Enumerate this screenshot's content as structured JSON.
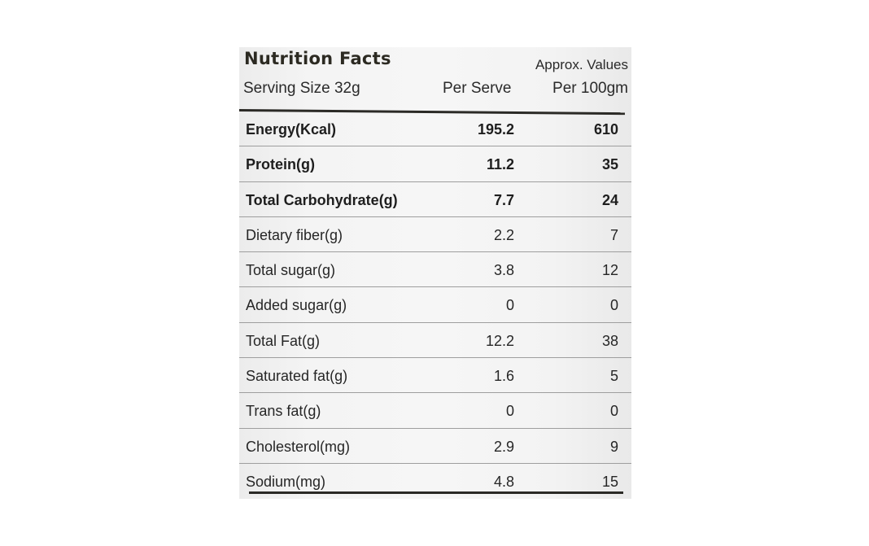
{
  "label": {
    "title": "Nutrition Facts",
    "approx": "Approx. Values",
    "serving_size": "Serving Size 32g",
    "col_per_serve": "Per Serve",
    "col_per_100": "Per 100gm"
  },
  "rows": [
    {
      "name": "Energy(Kcal)",
      "per_serve": "195.2",
      "per_100": "610",
      "bold": true
    },
    {
      "name": "Protein(g)",
      "per_serve": "11.2",
      "per_100": "35",
      "bold": true
    },
    {
      "name": "Total Carbohydrate(g)",
      "per_serve": "7.7",
      "per_100": "24",
      "bold": true
    },
    {
      "name": "Dietary fiber(g)",
      "per_serve": "2.2",
      "per_100": "7",
      "bold": false
    },
    {
      "name": "Total sugar(g)",
      "per_serve": "3.8",
      "per_100": "12",
      "bold": false
    },
    {
      "name": "Added sugar(g)",
      "per_serve": "0",
      "per_100": "0",
      "bold": false
    },
    {
      "name": "Total Fat(g)",
      "per_serve": "12.2",
      "per_100": "38",
      "bold": false
    },
    {
      "name": "Saturated fat(g)",
      "per_serve": "1.6",
      "per_100": "5",
      "bold": false
    },
    {
      "name": "Trans fat(g)",
      "per_serve": "0",
      "per_100": "0",
      "bold": false
    },
    {
      "name": "Cholesterol(mg)",
      "per_serve": "2.9",
      "per_100": "9",
      "bold": false
    },
    {
      "name": "Sodium(mg)",
      "per_serve": "4.8",
      "per_100": "15",
      "bold": false
    }
  ]
}
